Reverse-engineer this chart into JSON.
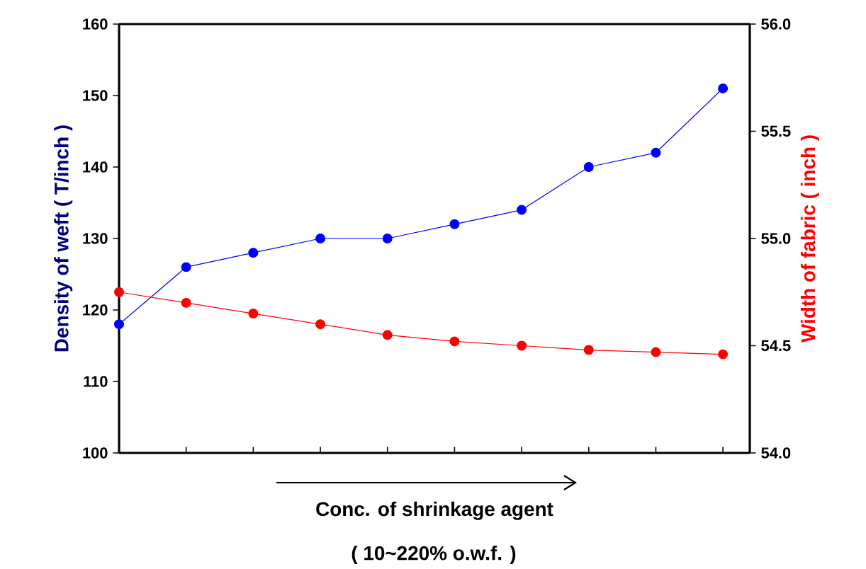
{
  "chart_data": {
    "type": "line",
    "xlabel": "Conc. of shrinkage agent",
    "ylabel": "Density of weft ( T/inch )",
    "y2label": "Width of fabric ( inch )",
    "annotations": [
      "( 10~220% o.w.f. )"
    ],
    "categories": [
      null,
      null,
      null,
      null,
      null,
      null,
      null,
      null,
      null,
      null
    ],
    "ylim": [
      100,
      160
    ],
    "yticks": [
      100,
      110,
      120,
      130,
      140,
      150,
      160
    ],
    "y2lim": [
      54,
      56
    ],
    "y2ticks": [
      {
        "value": 54,
        "label": "54.0"
      },
      {
        "value": 54.5,
        "label": "54.5"
      },
      {
        "value": 55,
        "label": "55.0"
      },
      {
        "value": 55.5,
        "label": "55.5"
      },
      {
        "value": 56,
        "label": "56.0"
      }
    ],
    "tick_labels": "y",
    "marker": "circle",
    "line_style": "solid",
    "grid": false,
    "series": [
      {
        "color": "#0000ff",
        "values": [
          118,
          126,
          128,
          130,
          130,
          132,
          134,
          140,
          142,
          151
        ]
      },
      {
        "color": "#ff0000",
        "axis": "y2",
        "values": [
          54.75,
          54.7,
          54.65,
          54.6,
          54.55,
          54.52,
          54.5,
          54.48,
          54.47,
          54.46
        ]
      }
    ]
  }
}
